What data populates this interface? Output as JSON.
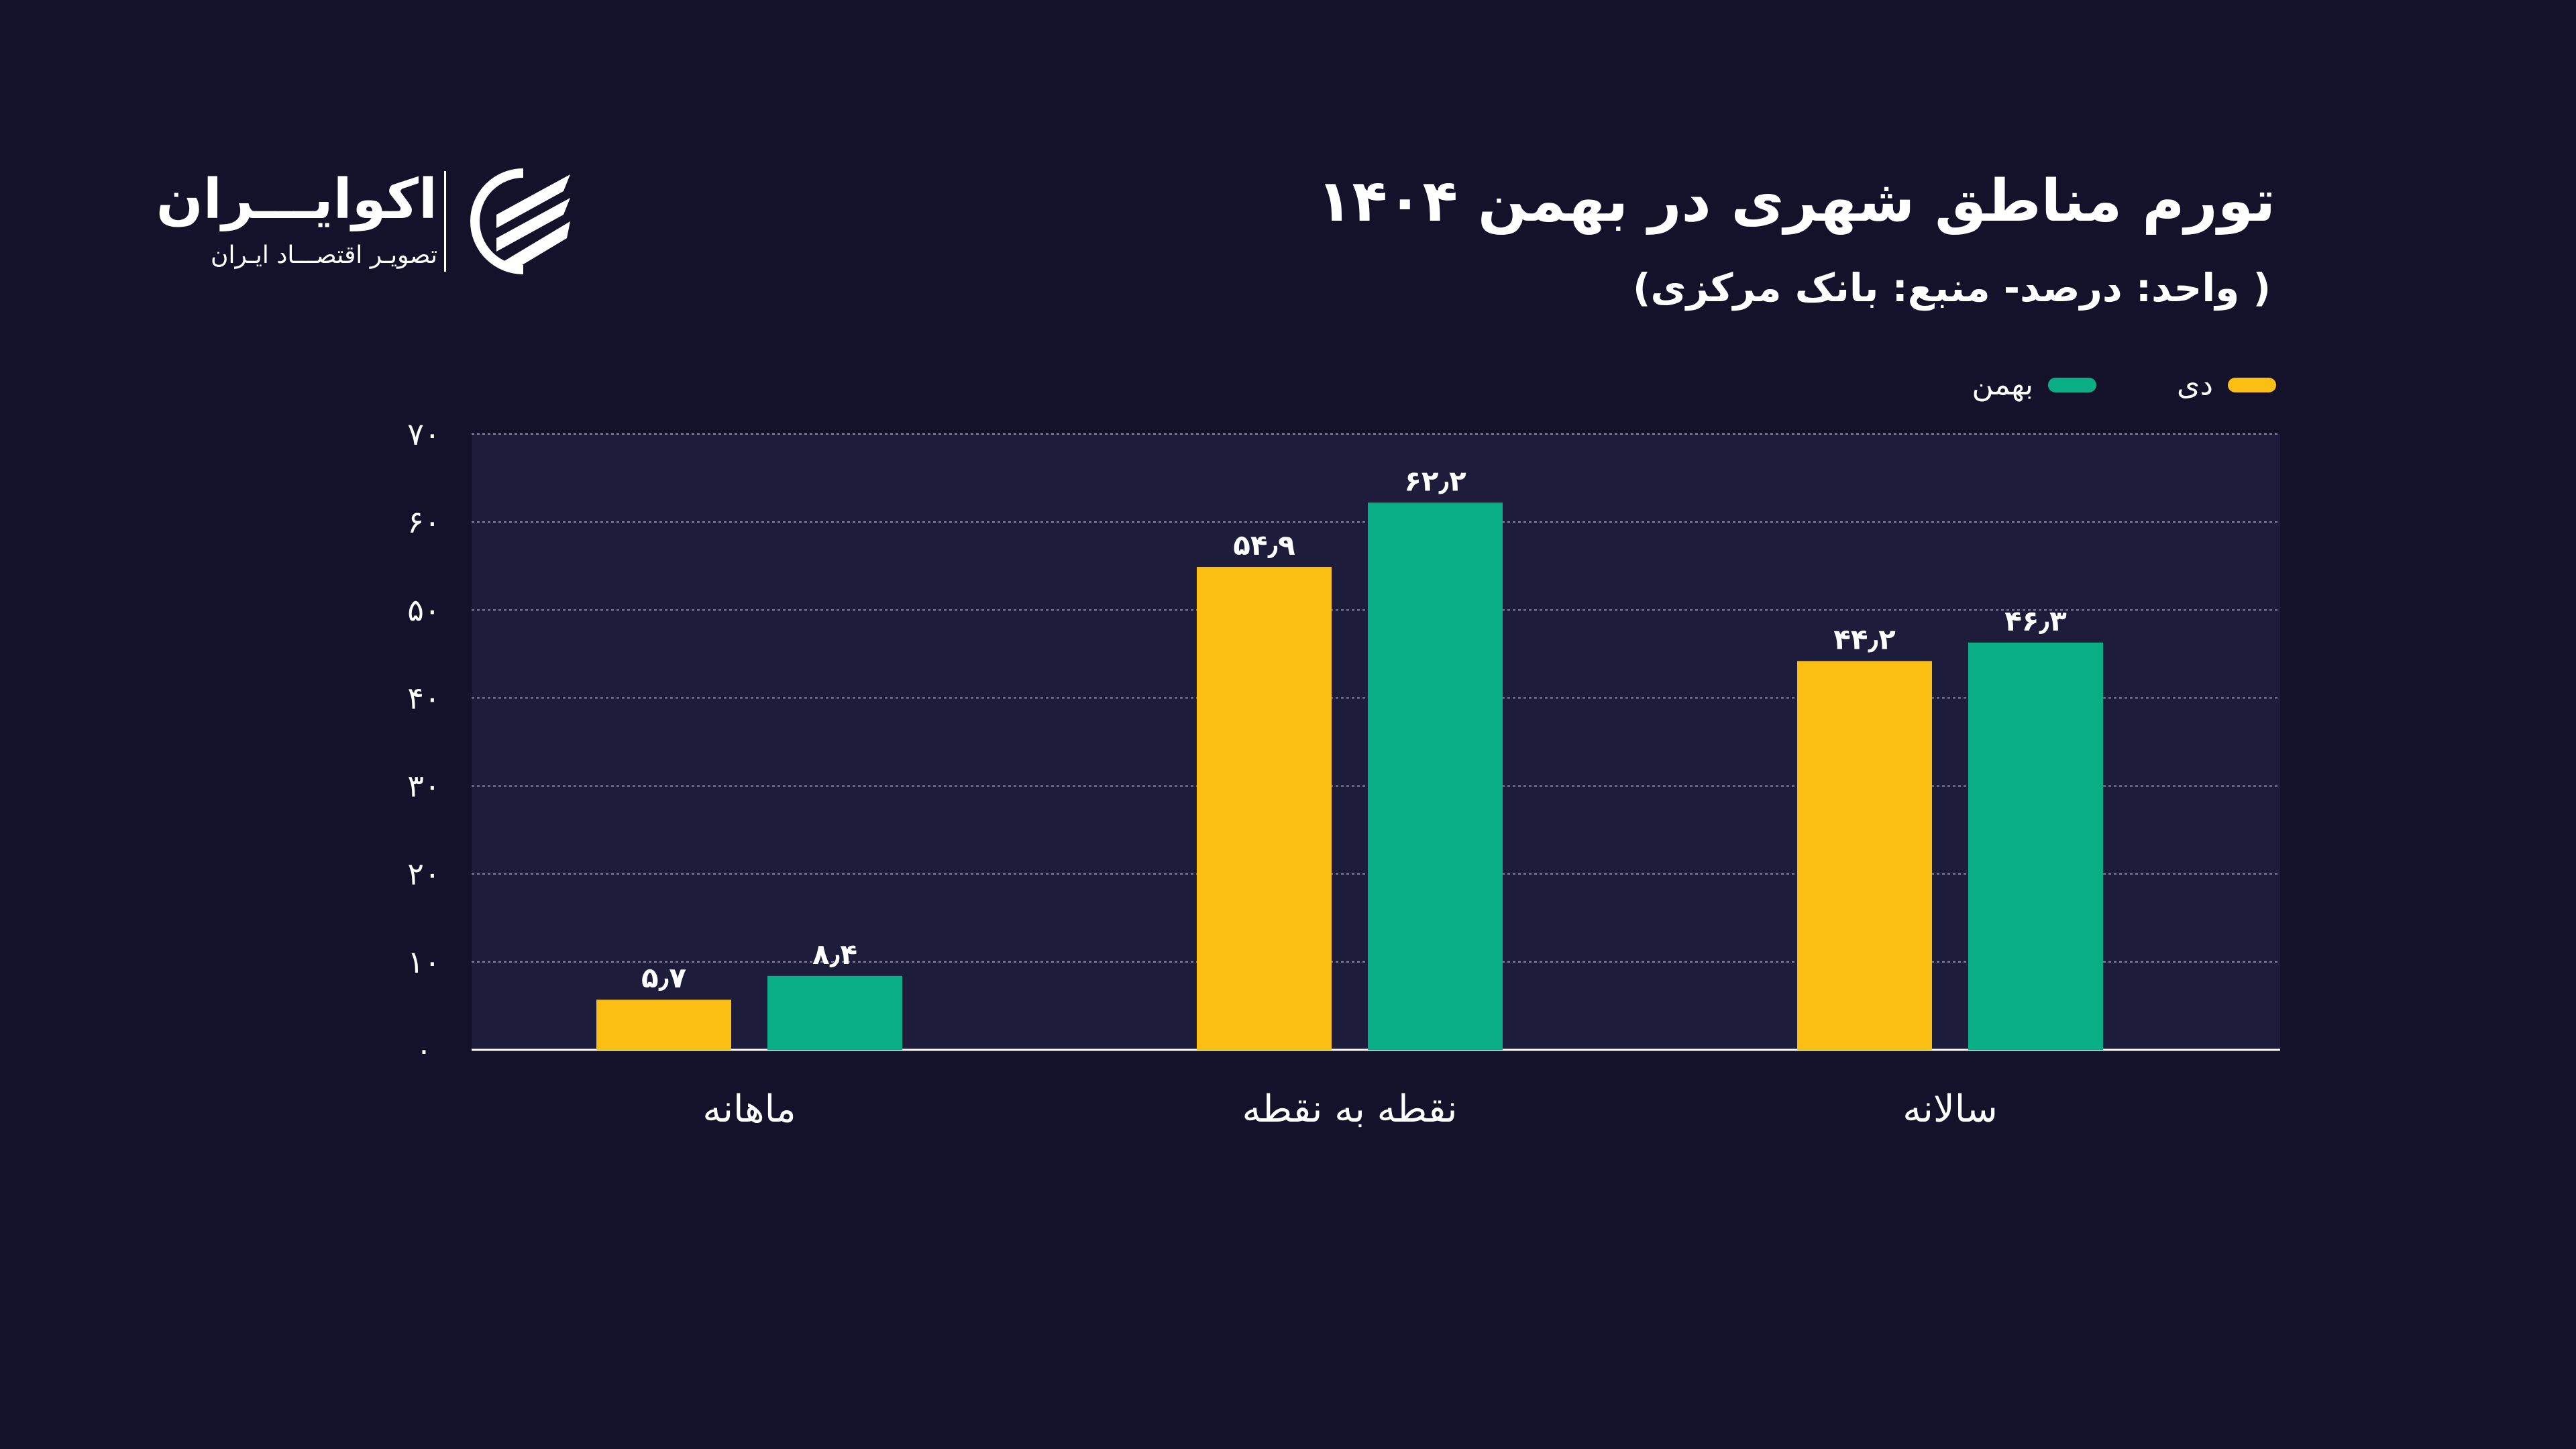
{
  "header": {
    "title": "تورم مناطق شهری در بهمن ۱۴۰۴",
    "subtitle": "( واحد: درصد- منبع: بانک مرکزی)"
  },
  "logo": {
    "name": "اکوایـــران",
    "tagline": "تصویـر اقتصـــاد ایـران"
  },
  "chart_data": {
    "type": "bar",
    "title": "تورم مناطق شهری در بهمن ۱۴۰۴",
    "categories": [
      "ماهانه",
      "نقطه به نقطه",
      "سالانه"
    ],
    "series": [
      {
        "name": "دی",
        "color": "#fbbf14",
        "values": [
          5.7,
          54.9,
          44.2
        ],
        "labels": [
          "۵٫۷",
          "۵۴٫۹",
          "۴۴٫۲"
        ]
      },
      {
        "name": "بهمن",
        "color": "#0aae84",
        "values": [
          8.4,
          62.2,
          46.3
        ],
        "labels": [
          "۸٫۴",
          "۶۲٫۲",
          "۴۶٫۳"
        ]
      }
    ],
    "ylim": [
      0,
      70
    ],
    "yticks": [
      0,
      10,
      20,
      30,
      40,
      50,
      60,
      70
    ],
    "ytick_labels": [
      "۰",
      "۱۰",
      "۲۰",
      "۳۰",
      "۴۰",
      "۵۰",
      "۶۰",
      "۷۰"
    ],
    "grid": true,
    "legend": "top-right"
  }
}
